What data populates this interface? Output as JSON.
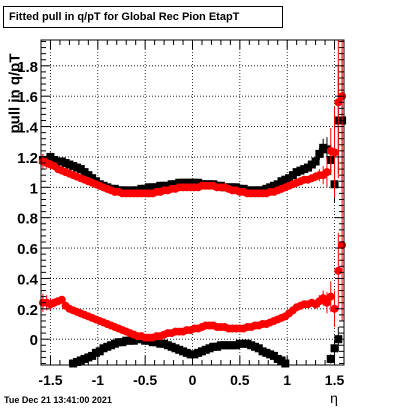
{
  "title": "Fitted pull in q/pT for Global Rec Pion EtapT",
  "ylabel": "pull in q/pT",
  "xlabel": "η",
  "timestamp": "Tue Dec 21 13:41:00 2021",
  "colors": {
    "series1": "#000000",
    "series2": "#ff0000",
    "grid": "#000000"
  },
  "chart_data": {
    "type": "scatter",
    "title": "Fitted pull in q/pT for Global Rec Pion EtapT",
    "xlabel": "η",
    "ylabel": "pull in q/pT",
    "xlim": [
      -1.6,
      1.6
    ],
    "ylim": [
      -0.17,
      1.97
    ],
    "x_ticks": [
      -1.5,
      -1,
      -0.5,
      0,
      0.5,
      1,
      1.5
    ],
    "x_tick_labels": [
      "-1.5",
      "-1",
      "-0.5",
      "0",
      "0.5",
      "1",
      "1.5"
    ],
    "y_ticks": [
      0,
      0.2,
      0.4,
      0.6,
      0.8,
      1,
      1.2,
      1.4,
      1.6,
      1.8
    ],
    "y_tick_labels": [
      "0",
      "0.2",
      "0.4",
      "0.6",
      "0.8",
      "1",
      "1.2",
      "1.4",
      "1.6",
      "1.8"
    ],
    "grid": true,
    "series": [
      {
        "marker": "square",
        "color": "#000000",
        "x": [
          -1.58,
          -1.54,
          -1.5,
          -1.46,
          -1.42,
          -1.38,
          -1.34,
          -1.3,
          -1.26,
          -1.22,
          -1.18,
          -1.14,
          -1.1,
          -1.06,
          -1.02,
          -0.98,
          -0.94,
          -0.9,
          -0.86,
          -0.82,
          -0.78,
          -0.74,
          -0.7,
          -0.66,
          -0.62,
          -0.58,
          -0.54,
          -0.5,
          -0.46,
          -0.42,
          -0.38,
          -0.34,
          -0.3,
          -0.26,
          -0.22,
          -0.18,
          -0.14,
          -0.1,
          -0.06,
          -0.02,
          0.02,
          0.06,
          0.1,
          0.14,
          0.18,
          0.22,
          0.26,
          0.3,
          0.34,
          0.38,
          0.42,
          0.46,
          0.5,
          0.54,
          0.58,
          0.62,
          0.66,
          0.7,
          0.74,
          0.78,
          0.82,
          0.86,
          0.9,
          0.94,
          0.98,
          1.02,
          1.06,
          1.1,
          1.14,
          1.18,
          1.22,
          1.26,
          1.3,
          1.34,
          1.38,
          1.42,
          1.46,
          1.5,
          1.54,
          1.58
        ],
        "y": [
          1.18,
          1.18,
          1.2,
          1.18,
          1.17,
          1.17,
          1.16,
          1.15,
          1.14,
          1.13,
          1.12,
          1.1,
          1.08,
          1.06,
          1.04,
          1.02,
          1.01,
          1.0,
          0.99,
          0.99,
          0.98,
          0.98,
          0.98,
          0.97,
          0.98,
          0.98,
          0.99,
          0.99,
          1.0,
          1.0,
          1.0,
          1.01,
          1.01,
          1.01,
          1.02,
          1.02,
          1.03,
          1.03,
          1.03,
          1.03,
          1.03,
          1.03,
          1.02,
          1.02,
          1.02,
          1.02,
          1.01,
          1.01,
          1.0,
          1.0,
          1.0,
          1.0,
          0.99,
          0.99,
          0.98,
          0.98,
          0.98,
          0.98,
          0.98,
          0.99,
          1.0,
          1.01,
          1.02,
          1.04,
          1.05,
          1.06,
          1.08,
          1.1,
          1.11,
          1.12,
          1.13,
          1.15,
          1.17,
          1.22,
          1.26,
          1.25,
          1.18,
          1.02,
          1.44,
          1.44
        ],
        "yerr": [
          0.04,
          0.03,
          0.03,
          0.02,
          0.02,
          0.02,
          0.02,
          0.02,
          0.01,
          0.01,
          0.01,
          0.01,
          0.01,
          0.01,
          0.01,
          0.01,
          0.01,
          0.01,
          0.01,
          0.01,
          0.01,
          0.01,
          0.01,
          0.01,
          0.01,
          0.01,
          0.01,
          0.01,
          0.01,
          0.01,
          0.01,
          0.01,
          0.01,
          0.01,
          0.01,
          0.01,
          0.01,
          0.01,
          0.01,
          0.01,
          0.01,
          0.01,
          0.01,
          0.01,
          0.01,
          0.01,
          0.01,
          0.01,
          0.01,
          0.01,
          0.01,
          0.01,
          0.01,
          0.01,
          0.01,
          0.01,
          0.01,
          0.01,
          0.01,
          0.01,
          0.01,
          0.01,
          0.01,
          0.01,
          0.01,
          0.01,
          0.01,
          0.02,
          0.02,
          0.02,
          0.02,
          0.02,
          0.03,
          0.04,
          0.06,
          0.08,
          0.1,
          0.12,
          0.35,
          0.45
        ]
      },
      {
        "marker": "square",
        "color": "#000000",
        "x": [
          -1.26,
          -1.22,
          -1.18,
          -1.14,
          -1.1,
          -1.06,
          -1.02,
          -0.98,
          -0.94,
          -0.9,
          -0.86,
          -0.82,
          -0.78,
          -0.74,
          -0.7,
          -0.66,
          -0.62,
          -0.58,
          -0.54,
          -0.5,
          -0.46,
          -0.42,
          -0.38,
          -0.34,
          -0.3,
          -0.26,
          -0.22,
          -0.18,
          -0.14,
          -0.1,
          -0.06,
          -0.02,
          0.02,
          0.06,
          0.1,
          0.14,
          0.18,
          0.22,
          0.26,
          0.3,
          0.34,
          0.38,
          0.42,
          0.46,
          0.5,
          0.54,
          0.58,
          0.62,
          0.66,
          0.7,
          0.74,
          0.78,
          0.82,
          0.86,
          0.9,
          0.94,
          0.98,
          1.46,
          1.5,
          1.54
        ],
        "y": [
          -0.16,
          -0.15,
          -0.14,
          -0.13,
          -0.12,
          -0.11,
          -0.09,
          -0.08,
          -0.06,
          -0.05,
          -0.04,
          -0.03,
          -0.02,
          -0.02,
          -0.01,
          -0.01,
          -0.01,
          0.0,
          0.0,
          -0.01,
          -0.01,
          -0.02,
          -0.02,
          -0.03,
          -0.03,
          -0.04,
          -0.05,
          -0.06,
          -0.07,
          -0.08,
          -0.09,
          -0.1,
          -0.1,
          -0.09,
          -0.08,
          -0.07,
          -0.06,
          -0.05,
          -0.05,
          -0.04,
          -0.04,
          -0.04,
          -0.04,
          -0.04,
          -0.03,
          -0.03,
          -0.03,
          -0.04,
          -0.05,
          -0.06,
          -0.08,
          -0.09,
          -0.1,
          -0.11,
          -0.13,
          -0.14,
          -0.16,
          -0.13,
          -0.06,
          0.0
        ],
        "yerr": [
          0.01,
          0.01,
          0.01,
          0.01,
          0.01,
          0.01,
          0.01,
          0.01,
          0.01,
          0.01,
          0.01,
          0.01,
          0.01,
          0.01,
          0.01,
          0.01,
          0.01,
          0.01,
          0.01,
          0.01,
          0.01,
          0.01,
          0.01,
          0.01,
          0.01,
          0.01,
          0.01,
          0.01,
          0.01,
          0.01,
          0.01,
          0.01,
          0.01,
          0.01,
          0.01,
          0.01,
          0.01,
          0.01,
          0.01,
          0.01,
          0.01,
          0.01,
          0.01,
          0.01,
          0.01,
          0.01,
          0.01,
          0.01,
          0.01,
          0.01,
          0.01,
          0.01,
          0.01,
          0.01,
          0.01,
          0.01,
          0.01,
          0.03,
          0.05,
          0.08
        ]
      },
      {
        "marker": "circle",
        "color": "#ff0000",
        "x": [
          -1.58,
          -1.54,
          -1.5,
          -1.46,
          -1.42,
          -1.38,
          -1.34,
          -1.3,
          -1.26,
          -1.22,
          -1.18,
          -1.14,
          -1.1,
          -1.06,
          -1.02,
          -0.98,
          -0.94,
          -0.9,
          -0.86,
          -0.82,
          -0.78,
          -0.74,
          -0.7,
          -0.66,
          -0.62,
          -0.58,
          -0.54,
          -0.5,
          -0.46,
          -0.42,
          -0.38,
          -0.34,
          -0.3,
          -0.26,
          -0.22,
          -0.18,
          -0.14,
          -0.1,
          -0.06,
          -0.02,
          0.02,
          0.06,
          0.1,
          0.14,
          0.18,
          0.22,
          0.26,
          0.3,
          0.34,
          0.38,
          0.42,
          0.46,
          0.5,
          0.54,
          0.58,
          0.62,
          0.66,
          0.7,
          0.74,
          0.78,
          0.82,
          0.86,
          0.9,
          0.94,
          0.98,
          1.02,
          1.06,
          1.1,
          1.14,
          1.18,
          1.22,
          1.26,
          1.3,
          1.34,
          1.38,
          1.42,
          1.46,
          1.5,
          1.54,
          1.58
        ],
        "y": [
          1.17,
          1.16,
          1.15,
          1.14,
          1.12,
          1.11,
          1.1,
          1.09,
          1.08,
          1.07,
          1.06,
          1.05,
          1.04,
          1.03,
          1.02,
          1.01,
          1.0,
          0.99,
          0.98,
          0.97,
          0.97,
          0.96,
          0.96,
          0.96,
          0.96,
          0.96,
          0.96,
          0.96,
          0.96,
          0.96,
          0.97,
          0.97,
          0.98,
          0.98,
          0.99,
          0.99,
          1.0,
          1.0,
          1.0,
          1.0,
          1.0,
          1.0,
          1.01,
          1.01,
          1.01,
          1.01,
          1.0,
          1.0,
          1.0,
          0.99,
          0.98,
          0.98,
          0.97,
          0.97,
          0.96,
          0.96,
          0.96,
          0.96,
          0.96,
          0.96,
          0.97,
          0.97,
          0.98,
          0.99,
          1.0,
          1.01,
          1.02,
          1.03,
          1.04,
          1.05,
          1.05,
          1.06,
          1.07,
          1.08,
          1.08,
          1.1,
          1.24,
          1.23,
          1.56,
          1.6
        ],
        "yerr": [
          0.05,
          0.04,
          0.03,
          0.02,
          0.02,
          0.02,
          0.02,
          0.02,
          0.01,
          0.01,
          0.01,
          0.01,
          0.01,
          0.01,
          0.01,
          0.01,
          0.01,
          0.01,
          0.01,
          0.01,
          0.01,
          0.01,
          0.01,
          0.01,
          0.01,
          0.01,
          0.01,
          0.01,
          0.01,
          0.01,
          0.01,
          0.01,
          0.01,
          0.01,
          0.01,
          0.01,
          0.01,
          0.01,
          0.01,
          0.01,
          0.01,
          0.01,
          0.01,
          0.01,
          0.01,
          0.01,
          0.01,
          0.01,
          0.01,
          0.01,
          0.01,
          0.01,
          0.01,
          0.01,
          0.01,
          0.01,
          0.01,
          0.01,
          0.01,
          0.01,
          0.01,
          0.01,
          0.01,
          0.01,
          0.01,
          0.01,
          0.01,
          0.02,
          0.02,
          0.02,
          0.02,
          0.02,
          0.03,
          0.04,
          0.06,
          0.1,
          0.15,
          0.3,
          0.5,
          0.5
        ]
      },
      {
        "marker": "circle",
        "color": "#ff0000",
        "x": [
          -1.58,
          -1.54,
          -1.5,
          -1.46,
          -1.42,
          -1.38,
          -1.34,
          -1.3,
          -1.26,
          -1.22,
          -1.18,
          -1.14,
          -1.1,
          -1.06,
          -1.02,
          -0.98,
          -0.94,
          -0.9,
          -0.86,
          -0.82,
          -0.78,
          -0.74,
          -0.7,
          -0.66,
          -0.62,
          -0.58,
          -0.54,
          -0.5,
          -0.46,
          -0.42,
          -0.38,
          -0.34,
          -0.3,
          -0.26,
          -0.22,
          -0.18,
          -0.14,
          -0.1,
          -0.06,
          -0.02,
          0.02,
          0.06,
          0.1,
          0.14,
          0.18,
          0.22,
          0.26,
          0.3,
          0.34,
          0.38,
          0.42,
          0.46,
          0.5,
          0.54,
          0.58,
          0.62,
          0.66,
          0.7,
          0.74,
          0.78,
          0.82,
          0.86,
          0.9,
          0.94,
          0.98,
          1.02,
          1.06,
          1.1,
          1.14,
          1.18,
          1.22,
          1.26,
          1.3,
          1.34,
          1.38,
          1.42,
          1.46,
          1.5,
          1.54,
          1.58
        ],
        "y": [
          0.24,
          0.24,
          0.23,
          0.24,
          0.25,
          0.26,
          0.22,
          0.2,
          0.19,
          0.18,
          0.17,
          0.16,
          0.15,
          0.14,
          0.13,
          0.12,
          0.11,
          0.1,
          0.09,
          0.08,
          0.07,
          0.06,
          0.05,
          0.04,
          0.03,
          0.02,
          0.02,
          0.01,
          0.01,
          0.01,
          0.02,
          0.02,
          0.03,
          0.04,
          0.04,
          0.05,
          0.05,
          0.05,
          0.06,
          0.06,
          0.07,
          0.07,
          0.08,
          0.09,
          0.09,
          0.09,
          0.08,
          0.08,
          0.08,
          0.07,
          0.07,
          0.07,
          0.07,
          0.07,
          0.08,
          0.08,
          0.09,
          0.09,
          0.1,
          0.1,
          0.11,
          0.12,
          0.13,
          0.14,
          0.15,
          0.17,
          0.19,
          0.21,
          0.22,
          0.23,
          0.23,
          0.24,
          0.23,
          0.25,
          0.27,
          0.24,
          0.28,
          0.2,
          0.45,
          0.62
        ],
        "yerr": [
          0.06,
          0.05,
          0.04,
          0.03,
          0.02,
          0.02,
          0.02,
          0.02,
          0.01,
          0.01,
          0.01,
          0.01,
          0.01,
          0.01,
          0.01,
          0.01,
          0.01,
          0.01,
          0.01,
          0.01,
          0.01,
          0.01,
          0.01,
          0.01,
          0.01,
          0.01,
          0.01,
          0.01,
          0.01,
          0.01,
          0.01,
          0.01,
          0.01,
          0.01,
          0.01,
          0.01,
          0.01,
          0.01,
          0.01,
          0.01,
          0.01,
          0.01,
          0.01,
          0.01,
          0.01,
          0.01,
          0.01,
          0.01,
          0.01,
          0.01,
          0.01,
          0.01,
          0.01,
          0.01,
          0.01,
          0.01,
          0.01,
          0.01,
          0.01,
          0.01,
          0.01,
          0.01,
          0.01,
          0.01,
          0.01,
          0.01,
          0.01,
          0.02,
          0.02,
          0.02,
          0.02,
          0.02,
          0.03,
          0.04,
          0.05,
          0.07,
          0.1,
          0.12,
          0.25,
          0.5
        ]
      }
    ]
  }
}
